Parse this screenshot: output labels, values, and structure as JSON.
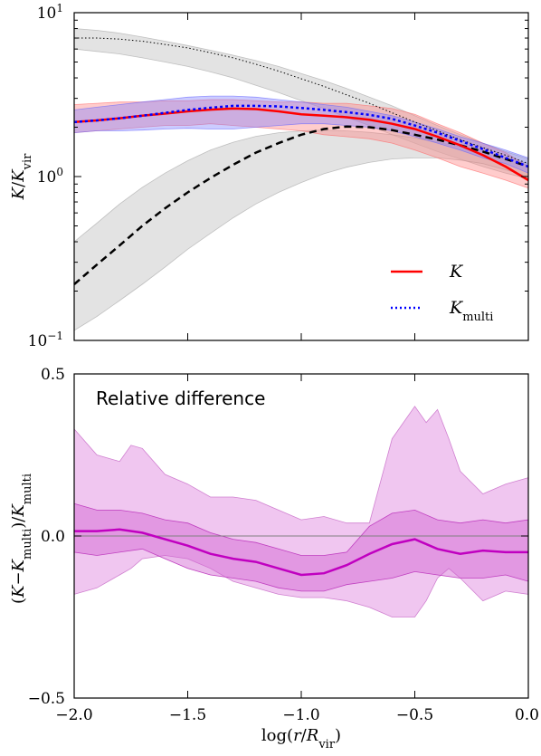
{
  "chart_data": [
    {
      "type": "line",
      "panel": "top",
      "ylabel": "K/K_vir",
      "yscale": "log",
      "ylim": [
        0.1,
        10
      ],
      "xlim": [
        -2.0,
        0.0
      ],
      "y_ticks": [
        {
          "value": 0.1,
          "label": "10",
          "exp": "−1"
        },
        {
          "value": 1,
          "label": "10",
          "exp": "0"
        },
        {
          "value": 10,
          "label": "10",
          "exp": "1"
        }
      ],
      "legend": {
        "placement": "lower-right"
      },
      "series": [
        {
          "name": "K",
          "legend_label": "K",
          "color": "#ff0000",
          "style": "solid",
          "band": [
            [
              -2.0,
              1.85,
              2.75
            ],
            [
              -1.9,
              1.9,
              2.8
            ],
            [
              -1.8,
              1.95,
              2.85
            ],
            [
              -1.7,
              2.0,
              2.85
            ],
            [
              -1.6,
              2.05,
              2.9
            ],
            [
              -1.5,
              2.05,
              2.9
            ],
            [
              -1.4,
              2.1,
              2.95
            ],
            [
              -1.3,
              2.05,
              2.95
            ],
            [
              -1.2,
              2.0,
              2.9
            ],
            [
              -1.1,
              1.95,
              2.85
            ],
            [
              -1.0,
              1.9,
              2.85
            ],
            [
              -0.9,
              1.8,
              2.8
            ],
            [
              -0.8,
              1.75,
              2.8
            ],
            [
              -0.7,
              1.7,
              2.7
            ],
            [
              -0.6,
              1.6,
              2.6
            ],
            [
              -0.5,
              1.45,
              2.4
            ],
            [
              -0.4,
              1.3,
              2.1
            ],
            [
              -0.3,
              1.15,
              1.85
            ],
            [
              -0.2,
              1.05,
              1.6
            ],
            [
              -0.1,
              0.95,
              1.4
            ],
            [
              0.0,
              0.85,
              1.15
            ]
          ],
          "x": [
            -2.0,
            -1.9,
            -1.8,
            -1.7,
            -1.6,
            -1.5,
            -1.4,
            -1.3,
            -1.2,
            -1.1,
            -1.0,
            -0.9,
            -0.8,
            -0.7,
            -0.6,
            -0.5,
            -0.4,
            -0.3,
            -0.2,
            -0.1,
            0.0
          ],
          "y": [
            2.15,
            2.2,
            2.27,
            2.35,
            2.42,
            2.5,
            2.56,
            2.6,
            2.58,
            2.5,
            2.4,
            2.35,
            2.3,
            2.22,
            2.1,
            1.95,
            1.75,
            1.55,
            1.35,
            1.15,
            0.95
          ]
        },
        {
          "name": "K_multi",
          "legend_label": "K",
          "legend_sub": "multi",
          "color": "#0000ff",
          "style": "dotted",
          "band": [
            [
              -2.0,
              1.85,
              2.55
            ],
            [
              -1.9,
              1.9,
              2.65
            ],
            [
              -1.8,
              1.9,
              2.75
            ],
            [
              -1.7,
              1.92,
              2.85
            ],
            [
              -1.6,
              1.95,
              2.95
            ],
            [
              -1.5,
              1.97,
              3.05
            ],
            [
              -1.4,
              1.95,
              3.1
            ],
            [
              -1.3,
              1.95,
              3.1
            ],
            [
              -1.2,
              2.0,
              3.05
            ],
            [
              -1.1,
              2.05,
              2.95
            ],
            [
              -1.0,
              2.1,
              2.85
            ],
            [
              -0.9,
              2.1,
              2.75
            ],
            [
              -0.8,
              2.05,
              2.65
            ],
            [
              -0.7,
              2.0,
              2.5
            ],
            [
              -0.6,
              1.9,
              2.35
            ],
            [
              -0.5,
              1.75,
              2.15
            ],
            [
              -0.4,
              1.6,
              1.95
            ],
            [
              -0.3,
              1.45,
              1.75
            ],
            [
              -0.2,
              1.3,
              1.6
            ],
            [
              -0.1,
              1.2,
              1.45
            ],
            [
              0.0,
              1.05,
              1.3
            ]
          ],
          "x": [
            -2.0,
            -1.9,
            -1.8,
            -1.7,
            -1.6,
            -1.5,
            -1.4,
            -1.3,
            -1.2,
            -1.1,
            -1.0,
            -0.9,
            -0.8,
            -0.7,
            -0.6,
            -0.5,
            -0.4,
            -0.3,
            -0.2,
            -0.1,
            0.0
          ],
          "y": [
            2.15,
            2.2,
            2.27,
            2.35,
            2.45,
            2.55,
            2.63,
            2.7,
            2.7,
            2.68,
            2.62,
            2.55,
            2.47,
            2.38,
            2.25,
            2.05,
            1.85,
            1.65,
            1.47,
            1.3,
            1.15
          ]
        },
        {
          "color": "#000000",
          "style": "dashed",
          "band": [
            [
              -2.0,
              0.115,
              0.4
            ],
            [
              -1.9,
              0.14,
              0.52
            ],
            [
              -1.8,
              0.175,
              0.68
            ],
            [
              -1.7,
              0.22,
              0.86
            ],
            [
              -1.6,
              0.28,
              1.05
            ],
            [
              -1.5,
              0.36,
              1.25
            ],
            [
              -1.4,
              0.45,
              1.45
            ],
            [
              -1.3,
              0.56,
              1.62
            ],
            [
              -1.2,
              0.68,
              1.76
            ],
            [
              -1.1,
              0.8,
              1.85
            ],
            [
              -1.0,
              0.92,
              1.9
            ],
            [
              -0.9,
              1.04,
              1.92
            ],
            [
              -0.8,
              1.14,
              1.9
            ],
            [
              -0.7,
              1.22,
              1.86
            ],
            [
              -0.6,
              1.28,
              1.8
            ],
            [
              -0.5,
              1.3,
              1.72
            ],
            [
              -0.4,
              1.3,
              1.62
            ],
            [
              -0.3,
              1.26,
              1.52
            ],
            [
              -0.2,
              1.2,
              1.42
            ],
            [
              -0.1,
              1.1,
              1.3
            ],
            [
              0.0,
              1.0,
              1.2
            ]
          ],
          "x": [
            -2.0,
            -1.9,
            -1.8,
            -1.7,
            -1.6,
            -1.5,
            -1.4,
            -1.3,
            -1.2,
            -1.1,
            -1.0,
            -0.9,
            -0.8,
            -0.7,
            -0.6,
            -0.5,
            -0.4,
            -0.3,
            -0.2,
            -0.1,
            0.0
          ],
          "y": [
            0.22,
            0.29,
            0.38,
            0.5,
            0.64,
            0.8,
            0.98,
            1.18,
            1.4,
            1.6,
            1.8,
            1.95,
            2.02,
            2.0,
            1.92,
            1.8,
            1.68,
            1.55,
            1.42,
            1.28,
            1.15
          ]
        },
        {
          "color": "#000000",
          "style": "dotted-fine",
          "band": [
            [
              -2.0,
              6.0,
              8.0
            ],
            [
              -1.9,
              5.8,
              7.8
            ],
            [
              -1.8,
              5.6,
              7.5
            ],
            [
              -1.7,
              5.3,
              7.1
            ],
            [
              -1.6,
              5.0,
              6.7
            ],
            [
              -1.5,
              4.7,
              6.3
            ],
            [
              -1.4,
              4.35,
              5.9
            ],
            [
              -1.3,
              4.0,
              5.5
            ],
            [
              -1.2,
              3.6,
              5.1
            ],
            [
              -1.1,
              3.25,
              4.7
            ],
            [
              -1.0,
              2.9,
              4.25
            ],
            [
              -0.9,
              2.6,
              3.85
            ],
            [
              -0.8,
              2.3,
              3.45
            ],
            [
              -0.7,
              2.05,
              3.05
            ],
            [
              -0.6,
              1.8,
              2.7
            ],
            [
              -0.5,
              1.6,
              2.35
            ],
            [
              -0.4,
              1.42,
              2.05
            ],
            [
              -0.3,
              1.28,
              1.8
            ],
            [
              -0.2,
              1.15,
              1.6
            ],
            [
              -0.1,
              1.05,
              1.42
            ],
            [
              0.0,
              0.97,
              1.28
            ]
          ],
          "x": [
            -2.0,
            -1.9,
            -1.8,
            -1.7,
            -1.6,
            -1.5,
            -1.4,
            -1.3,
            -1.2,
            -1.1,
            -1.0,
            -0.9,
            -0.8,
            -0.7,
            -0.6,
            -0.5,
            -0.4,
            -0.3,
            -0.2,
            -0.1,
            0.0
          ],
          "y": [
            7.0,
            7.0,
            6.9,
            6.7,
            6.4,
            6.1,
            5.7,
            5.3,
            4.85,
            4.4,
            3.95,
            3.55,
            3.15,
            2.8,
            2.45,
            2.15,
            1.9,
            1.68,
            1.5,
            1.35,
            1.2
          ]
        }
      ]
    },
    {
      "type": "line",
      "panel": "bottom",
      "title": "Relative difference",
      "xlabel": "log(r/R_vir)",
      "ylabel": "(K−K_multi)/K_multi",
      "xlim": [
        -2.0,
        0.0
      ],
      "ylim": [
        -0.5,
        0.5
      ],
      "x_ticks": [
        -2.0,
        -1.5,
        -1.0,
        -0.5,
        0.0
      ],
      "x_tick_labels": [
        "−2.0",
        "−1.5",
        "−1.0",
        "−0.5",
        "0.0"
      ],
      "y_ticks": [
        -0.5,
        0.0,
        0.5
      ],
      "y_tick_labels": [
        "−0.5",
        "0.0",
        "0.5"
      ],
      "zero_line": 0.0,
      "series": [
        {
          "color": "#c000c0",
          "outer_band": [
            [
              -2.0,
              -0.18,
              0.33
            ],
            [
              -1.9,
              -0.16,
              0.25
            ],
            [
              -1.8,
              -0.12,
              0.23
            ],
            [
              -1.75,
              -0.1,
              0.28
            ],
            [
              -1.7,
              -0.07,
              0.27
            ],
            [
              -1.6,
              -0.06,
              0.19
            ],
            [
              -1.5,
              -0.07,
              0.16
            ],
            [
              -1.4,
              -0.1,
              0.12
            ],
            [
              -1.3,
              -0.14,
              0.12
            ],
            [
              -1.2,
              -0.16,
              0.11
            ],
            [
              -1.1,
              -0.18,
              0.08
            ],
            [
              -1.0,
              -0.19,
              0.05
            ],
            [
              -0.9,
              -0.19,
              0.06
            ],
            [
              -0.8,
              -0.2,
              0.04
            ],
            [
              -0.7,
              -0.22,
              0.04
            ],
            [
              -0.6,
              -0.25,
              0.3
            ],
            [
              -0.5,
              -0.25,
              0.4
            ],
            [
              -0.45,
              -0.2,
              0.35
            ],
            [
              -0.4,
              -0.13,
              0.39
            ],
            [
              -0.35,
              -0.1,
              0.3
            ],
            [
              -0.3,
              -0.13,
              0.2
            ],
            [
              -0.2,
              -0.2,
              0.13
            ],
            [
              -0.1,
              -0.17,
              0.16
            ],
            [
              0.0,
              -0.18,
              0.18
            ]
          ],
          "inner_band": [
            [
              -2.0,
              -0.05,
              0.1
            ],
            [
              -1.9,
              -0.06,
              0.08
            ],
            [
              -1.8,
              -0.05,
              0.08
            ],
            [
              -1.7,
              -0.04,
              0.07
            ],
            [
              -1.6,
              -0.07,
              0.05
            ],
            [
              -1.5,
              -0.1,
              0.04
            ],
            [
              -1.4,
              -0.12,
              0.01
            ],
            [
              -1.3,
              -0.13,
              -0.01
            ],
            [
              -1.2,
              -0.14,
              -0.02
            ],
            [
              -1.1,
              -0.16,
              -0.04
            ],
            [
              -1.0,
              -0.17,
              -0.06
            ],
            [
              -0.9,
              -0.17,
              -0.06
            ],
            [
              -0.8,
              -0.15,
              -0.05
            ],
            [
              -0.7,
              -0.14,
              0.03
            ],
            [
              -0.6,
              -0.13,
              0.07
            ],
            [
              -0.5,
              -0.11,
              0.08
            ],
            [
              -0.4,
              -0.12,
              0.05
            ],
            [
              -0.3,
              -0.13,
              0.04
            ],
            [
              -0.2,
              -0.13,
              0.05
            ],
            [
              -0.1,
              -0.12,
              0.04
            ],
            [
              0.0,
              -0.14,
              0.05
            ]
          ],
          "x": [
            -2.0,
            -1.9,
            -1.8,
            -1.7,
            -1.6,
            -1.5,
            -1.4,
            -1.3,
            -1.2,
            -1.1,
            -1.0,
            -0.9,
            -0.8,
            -0.7,
            -0.6,
            -0.5,
            -0.4,
            -0.3,
            -0.2,
            -0.1,
            0.0
          ],
          "y": [
            0.015,
            0.015,
            0.02,
            0.01,
            -0.01,
            -0.03,
            -0.055,
            -0.07,
            -0.08,
            -0.1,
            -0.12,
            -0.115,
            -0.09,
            -0.055,
            -0.025,
            -0.01,
            -0.04,
            -0.055,
            -0.045,
            -0.05,
            -0.05
          ]
        }
      ]
    }
  ]
}
